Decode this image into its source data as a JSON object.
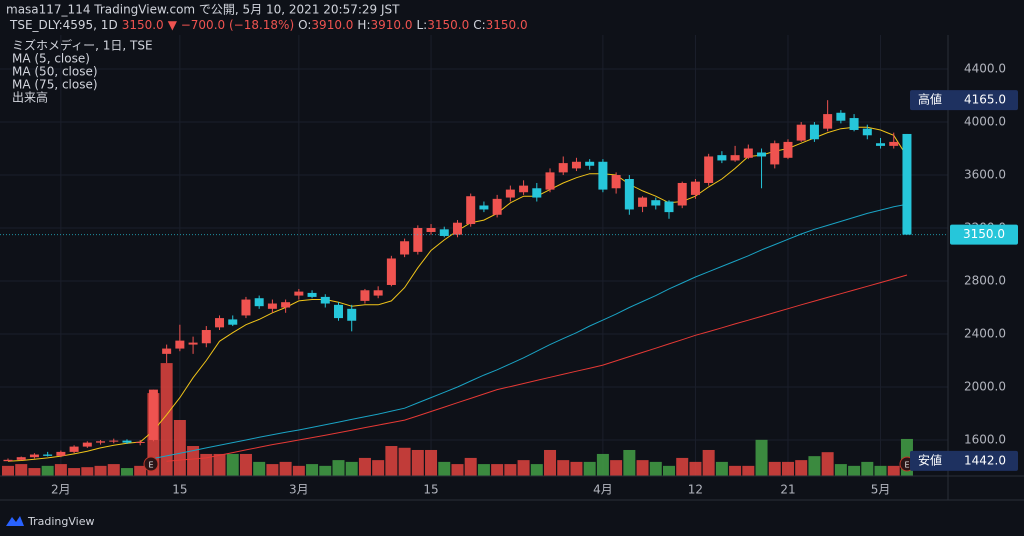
{
  "chart_data": {
    "type": "candlestick",
    "header": {
      "line1": "masa117_114 TradingView.com で公開, 5月 10, 2021 20:57:29 JST",
      "symbol": "TSE_DLY:4595, 1D",
      "last": "3150.0",
      "change": "▼ −700.0 (−18.18%)",
      "ohlc": [
        {
          "key": "O:",
          "value": "3910.0"
        },
        {
          "key": "H:",
          "value": "3910.0"
        },
        {
          "key": "L:",
          "value": "3150.0"
        },
        {
          "key": "C:",
          "value": "3150.0"
        }
      ]
    },
    "instrument": "ミズホメディー, 1日, TSE",
    "volume_name": "出来高",
    "footer": "TradingView",
    "events": [
      "E",
      "E"
    ],
    "categories": [
      null,
      null,
      null,
      null,
      "2月",
      null,
      null,
      null,
      null,
      null,
      null,
      null,
      null,
      "15",
      null,
      null,
      null,
      null,
      null,
      null,
      null,
      null,
      "3月",
      null,
      null,
      null,
      null,
      null,
      null,
      null,
      null,
      null,
      "15",
      null,
      null,
      null,
      null,
      null,
      null,
      null,
      null,
      null,
      null,
      null,
      null,
      "4月",
      null,
      null,
      null,
      null,
      null,
      null,
      "12",
      null,
      null,
      null,
      null,
      null,
      null,
      "21",
      null,
      null,
      null,
      null,
      null,
      null,
      "5月",
      null,
      null
    ],
    "open": [
      1440,
      1450,
      1470,
      1490,
      1480,
      1510,
      1550,
      1580,
      1590,
      1595,
      1580,
      1600,
      2250,
      2290,
      2320,
      2330,
      2450,
      2510,
      2540,
      2670,
      2590,
      2600,
      2690,
      2710,
      2680,
      2620,
      2590,
      2650,
      2690,
      2770,
      3000,
      3020,
      3170,
      3190,
      3150,
      3230,
      3370,
      3300,
      3430,
      3470,
      3500,
      3490,
      3620,
      3650,
      3700,
      3700,
      3500,
      3570,
      3360,
      3410,
      3400,
      3370,
      3450,
      3540,
      3750,
      3710,
      3730,
      3770,
      3680,
      3730,
      3860,
      3980,
      3950,
      4070,
      4030,
      3950,
      3840,
      3820,
      3910
    ],
    "high": [
      1460,
      1475,
      1500,
      1510,
      1520,
      1560,
      1590,
      1600,
      1610,
      1605,
      1600,
      1980,
      2320,
      2470,
      2380,
      2460,
      2540,
      2540,
      2680,
      2690,
      2660,
      2660,
      2740,
      2730,
      2700,
      2640,
      2620,
      2740,
      2760,
      2990,
      3120,
      3220,
      3230,
      3210,
      3260,
      3460,
      3400,
      3450,
      3520,
      3560,
      3540,
      3650,
      3740,
      3730,
      3720,
      3720,
      3620,
      3600,
      3440,
      3430,
      3410,
      3550,
      3570,
      3760,
      3780,
      3820,
      3830,
      3800,
      3860,
      3870,
      4000,
      4000,
      4165,
      4090,
      4060,
      3980,
      3880,
      3920,
      3910
    ],
    "low": [
      1442,
      1445,
      1460,
      1475,
      1470,
      1500,
      1540,
      1565,
      1575,
      1570,
      1560,
      1590,
      2180,
      2270,
      2250,
      2300,
      2430,
      2460,
      2520,
      2590,
      2560,
      2560,
      2660,
      2670,
      2600,
      2500,
      2420,
      2630,
      2670,
      2760,
      2980,
      3000,
      3150,
      3130,
      3130,
      3210,
      3320,
      3280,
      3400,
      3450,
      3400,
      3470,
      3600,
      3630,
      3640,
      3470,
      3460,
      3300,
      3320,
      3340,
      3270,
      3350,
      3420,
      3520,
      3690,
      3700,
      3720,
      3500,
      3650,
      3720,
      3850,
      3850,
      3930,
      3990,
      3930,
      3870,
      3800,
      3800,
      3150
    ],
    "close": [
      1450,
      1470,
      1490,
      1480,
      1510,
      1550,
      1580,
      1590,
      1595,
      1580,
      1585,
      1980,
      2290,
      2350,
      2335,
      2430,
      2520,
      2470,
      2660,
      2610,
      2630,
      2640,
      2720,
      2680,
      2630,
      2520,
      2500,
      2730,
      2730,
      2970,
      3100,
      3200,
      3200,
      3140,
      3240,
      3440,
      3340,
      3420,
      3490,
      3520,
      3430,
      3620,
      3690,
      3700,
      3670,
      3490,
      3600,
      3340,
      3430,
      3370,
      3320,
      3540,
      3550,
      3740,
      3710,
      3750,
      3800,
      3740,
      3840,
      3850,
      3980,
      3870,
      4060,
      4010,
      3940,
      3900,
      3820,
      3850,
      3150
    ],
    "volume": [
      23,
      27,
      18,
      23,
      27,
      18,
      20,
      23,
      27,
      18,
      23,
      188,
      256,
      127,
      68,
      50,
      50,
      50,
      50,
      32,
      27,
      32,
      23,
      27,
      23,
      36,
      32,
      41,
      36,
      68,
      64,
      59,
      59,
      32,
      27,
      41,
      27,
      27,
      27,
      36,
      27,
      59,
      36,
      32,
      32,
      50,
      36,
      59,
      36,
      32,
      23,
      41,
      32,
      59,
      32,
      23,
      23,
      82,
      32,
      32,
      36,
      45,
      54,
      27,
      23,
      32,
      23,
      23,
      84
    ],
    "up_color": "#ef5350",
    "down_color": "#26c6da",
    "volume_up_color": "#e0443f",
    "volume_down_color": "#43a047",
    "series": [
      {
        "name": "MA (5, close)",
        "color": "#f0c419",
        "values": [
          1440,
          1445,
          1455,
          1465,
          1478,
          1495,
          1515,
          1540,
          1560,
          1575,
          1585,
          1670,
          1790,
          1920,
          2070,
          2200,
          2345,
          2410,
          2470,
          2510,
          2560,
          2600,
          2650,
          2660,
          2660,
          2640,
          2610,
          2620,
          2620,
          2650,
          2750,
          2900,
          3030,
          3110,
          3180,
          3240,
          3260,
          3310,
          3390,
          3440,
          3440,
          3490,
          3540,
          3580,
          3610,
          3610,
          3600,
          3530,
          3480,
          3440,
          3390,
          3400,
          3440,
          3510,
          3570,
          3650,
          3740,
          3750,
          3780,
          3800,
          3840,
          3880,
          3920,
          3950,
          3960,
          3960,
          3940,
          3900,
          3740
        ]
      },
      {
        "name": "MA (50, close)",
        "color": "#1aa3c4",
        "values": [
          null,
          null,
          null,
          null,
          null,
          null,
          null,
          null,
          null,
          null,
          null,
          1460,
          1480,
          1500,
          1520,
          1540,
          1560,
          1580,
          1600,
          1620,
          1640,
          1658,
          1675,
          1695,
          1715,
          1735,
          1755,
          1775,
          1795,
          1818,
          1840,
          1880,
          1920,
          1960,
          2000,
          2045,
          2090,
          2130,
          2175,
          2220,
          2270,
          2320,
          2365,
          2410,
          2460,
          2505,
          2550,
          2600,
          2645,
          2690,
          2740,
          2785,
          2830,
          2870,
          2910,
          2950,
          2990,
          3035,
          3075,
          3115,
          3155,
          3190,
          3220,
          3250,
          3280,
          3310,
          3335,
          3360,
          3380
        ]
      },
      {
        "name": "MA (75, close)",
        "color": "#e53935",
        "values": [
          null,
          null,
          null,
          null,
          null,
          null,
          null,
          null,
          null,
          null,
          null,
          null,
          1440,
          1448,
          1456,
          1465,
          1485,
          1505,
          1525,
          1545,
          1565,
          1582,
          1600,
          1618,
          1636,
          1655,
          1674,
          1693,
          1712,
          1731,
          1750,
          1782,
          1815,
          1848,
          1881,
          1914,
          1947,
          1980,
          2003,
          2026,
          2050,
          2073,
          2096,
          2119,
          2142,
          2165,
          2197,
          2229,
          2261,
          2293,
          2325,
          2357,
          2390,
          2418,
          2447,
          2476,
          2504,
          2533,
          2562,
          2591,
          2620,
          2648,
          2676,
          2704,
          2732,
          2760,
          2788,
          2816,
          2845
        ]
      }
    ],
    "ylim": [
      1328,
      4657
    ],
    "vlim": [
      0,
      1000
    ],
    "yticks": [
      {
        "value": 1600,
        "label": "1600.0"
      },
      {
        "value": 2000,
        "label": "2000.0"
      },
      {
        "value": 2400,
        "label": "2400.0"
      },
      {
        "value": 2800,
        "label": "2800.0"
      },
      {
        "value": 3200,
        "label": "3200.0"
      },
      {
        "value": 3600,
        "label": "3600.0"
      },
      {
        "value": 4000,
        "label": "4000.0"
      },
      {
        "value": 4400,
        "label": "4400.0"
      }
    ],
    "grid": true,
    "high_marker": {
      "label": "高値",
      "value": 4165,
      "value_label": "4165.0"
    },
    "low_marker": {
      "label": "安値",
      "value": 1442,
      "value_label": "1442.0"
    },
    "last_price": {
      "value": 3150,
      "value_label": "3150.0"
    }
  }
}
